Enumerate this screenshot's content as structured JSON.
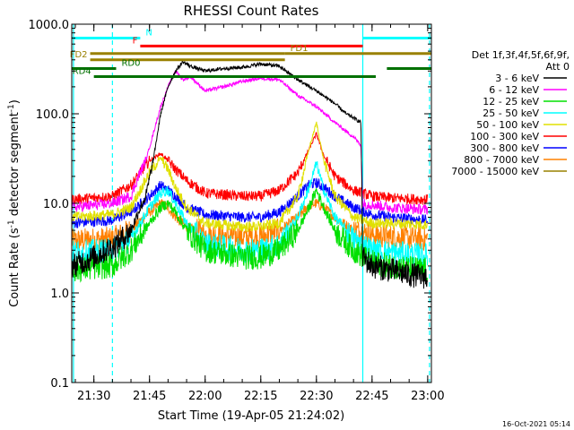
{
  "chart_data": {
    "type": "line",
    "title": "RHESSI Count Rates",
    "xlabel": "Start Time (19-Apr-05 21:24:02)",
    "ylabel_parts": [
      "Count Rate (s",
      "-1",
      " detector segment",
      "-1",
      ")"
    ],
    "y_scale": "log",
    "ylim": [
      0.1,
      1000
    ],
    "xlim": [
      "21:24:02",
      "23:01:00"
    ],
    "x_ticks": [
      "21:30",
      "21:45",
      "22:00",
      "22:15",
      "22:30",
      "22:45",
      "23:00"
    ],
    "y_ticks": [
      {
        "value": 0.1,
        "label": "0.1"
      },
      {
        "value": 1,
        "label": "1.0"
      },
      {
        "value": 10,
        "label": "10.0"
      },
      {
        "value": 100,
        "label": "100.0"
      },
      {
        "value": 1000,
        "label": "1000.0"
      }
    ],
    "legend_header": [
      "Det 1f,3f,4f,5f,6f,9f,",
      "Att 0"
    ],
    "legend_placement": "right",
    "timestamp": "16-Oct-2021 05:14",
    "series": [
      {
        "name": "3 - 6 keV",
        "color": "#000000",
        "x": [
          "21:24:02",
          "21:30",
          "21:36",
          "21:40",
          "21:42",
          "21:44",
          "21:46",
          "21:48",
          "21:50",
          "21:52",
          "21:54",
          "21:56",
          "22:00",
          "22:05",
          "22:10",
          "22:15",
          "22:20",
          "22:25",
          "22:30",
          "22:35",
          "22:38",
          "22:40",
          "22:42",
          "22:42:30",
          "22:45",
          "22:50",
          "22:55",
          "23:00"
        ],
        "y": [
          2.0,
          2.5,
          3.5,
          5,
          8,
          12,
          30,
          100,
          200,
          300,
          380,
          340,
          300,
          320,
          330,
          360,
          340,
          240,
          180,
          130,
          100,
          90,
          80,
          2.5,
          2.0,
          1.8,
          1.6,
          1.5
        ]
      },
      {
        "name": "6 - 12 keV",
        "color": "#ff00ff",
        "x": [
          "21:24:02",
          "21:35",
          "21:40",
          "21:42",
          "21:44",
          "21:46",
          "21:48",
          "21:50",
          "21:52",
          "21:54",
          "21:56",
          "22:00",
          "22:05",
          "22:10",
          "22:15",
          "22:20",
          "22:25",
          "22:30",
          "22:35",
          "22:40",
          "22:42",
          "22:42:30",
          "22:50",
          "23:00"
        ],
        "y": [
          9,
          10,
          12,
          20,
          30,
          60,
          120,
          200,
          300,
          240,
          260,
          180,
          200,
          230,
          250,
          240,
          160,
          120,
          80,
          55,
          45,
          10,
          9,
          8.5
        ]
      },
      {
        "name": "12 - 25 keV",
        "color": "#00e000",
        "x": [
          "21:24:02",
          "21:35",
          "21:40",
          "21:45",
          "21:48",
          "21:50",
          "21:52",
          "21:55",
          "22:00",
          "22:10",
          "22:15",
          "22:20",
          "22:25",
          "22:28",
          "22:30",
          "22:32",
          "22:35",
          "22:40",
          "22:45",
          "22:50",
          "23:00"
        ],
        "y": [
          1.8,
          2.0,
          3.0,
          6,
          9,
          10,
          8,
          5,
          3.0,
          2.5,
          2.5,
          3.0,
          5,
          9,
          14,
          9,
          5,
          3,
          2.2,
          2.0,
          1.8
        ]
      },
      {
        "name": "25 - 50 keV",
        "color": "#00ffff",
        "x": [
          "21:24:02",
          "21:35",
          "21:40",
          "21:45",
          "21:48",
          "21:50",
          "21:52",
          "21:55",
          "22:00",
          "22:10",
          "22:15",
          "22:20",
          "22:25",
          "22:28",
          "22:30",
          "22:32",
          "22:35",
          "22:40",
          "22:45",
          "22:50",
          "23:00"
        ],
        "y": [
          2.8,
          3.0,
          4,
          9,
          13,
          14,
          10,
          6,
          3.5,
          3.0,
          3.0,
          3.5,
          7,
          15,
          28,
          14,
          7,
          4,
          3,
          2.8,
          2.6
        ]
      },
      {
        "name": "50 - 100 keV",
        "color": "#e0e000",
        "x": [
          "21:24:02",
          "21:35",
          "21:40",
          "21:45",
          "21:48",
          "21:50",
          "21:52",
          "21:55",
          "22:00",
          "22:10",
          "22:15",
          "22:20",
          "22:25",
          "22:28",
          "22:30",
          "22:32",
          "22:35",
          "22:40",
          "22:45",
          "22:50",
          "23:00"
        ],
        "y": [
          7,
          7.5,
          9,
          22,
          32,
          24,
          15,
          9,
          6,
          5.5,
          5.5,
          6,
          12,
          40,
          80,
          30,
          12,
          7,
          6,
          6,
          5.8
        ]
      },
      {
        "name": "100 - 300 keV",
        "color": "#ff0000",
        "x": [
          "21:24:02",
          "21:35",
          "21:40",
          "21:45",
          "21:48",
          "21:50",
          "21:52",
          "21:55",
          "22:00",
          "22:10",
          "22:15",
          "22:20",
          "22:25",
          "22:28",
          "22:30",
          "22:32",
          "22:35",
          "22:40",
          "22:45",
          "22:50",
          "23:00"
        ],
        "y": [
          11,
          12,
          16,
          30,
          36,
          30,
          24,
          18,
          13,
          12,
          12,
          14,
          22,
          40,
          60,
          34,
          20,
          14,
          12,
          11.5,
          11
        ]
      },
      {
        "name": "300 - 800 keV",
        "color": "#0000ff",
        "x": [
          "21:24:02",
          "21:35",
          "21:40",
          "21:45",
          "21:48",
          "21:50",
          "21:52",
          "21:55",
          "22:00",
          "22:10",
          "22:15",
          "22:20",
          "22:25",
          "22:28",
          "22:30",
          "22:32",
          "22:35",
          "22:40",
          "22:45",
          "22:50",
          "23:00"
        ],
        "y": [
          6,
          6.5,
          8,
          12,
          16,
          14,
          12,
          9,
          7.5,
          7,
          7,
          8,
          12,
          16,
          17,
          15,
          12,
          9,
          7.5,
          7,
          6.5
        ]
      },
      {
        "name": "800 - 7000 keV",
        "color": "#ff8000",
        "x": [
          "21:24:02",
          "21:35",
          "21:40",
          "21:45",
          "21:48",
          "21:50",
          "21:52",
          "21:55",
          "22:00",
          "22:10",
          "22:15",
          "22:20",
          "22:25",
          "22:28",
          "22:30",
          "22:32",
          "22:35",
          "22:40",
          "22:45",
          "22:50",
          "23:00"
        ],
        "y": [
          3.8,
          4,
          5,
          8,
          10,
          9,
          7,
          5.5,
          4.5,
          4.2,
          4.2,
          5,
          7,
          9.5,
          10,
          9,
          7,
          5,
          4.5,
          4.2,
          4
        ]
      },
      {
        "name": "7000 - 15000 keV",
        "color": "#998000",
        "x": [],
        "y": []
      }
    ],
    "annotations": [
      {
        "label": "N",
        "color": "#00ffff",
        "label_pos": "right",
        "segments": [
          [
            "21:24:02",
            "21:42:30"
          ],
          [
            "22:42:30",
            "23:01:00"
          ]
        ],
        "y_value": 700
      },
      {
        "label": "F",
        "color": "#ff0000",
        "label_pos": "left",
        "segments": [
          [
            "21:42:30",
            "22:42:30"
          ]
        ],
        "y_value": 570
      },
      {
        "label": "FD1",
        "color": "#998000",
        "label_pos": "right",
        "segments": [
          [
            "21:29",
            "22:21:30"
          ],
          [
            "22:21:30",
            "23:01:00"
          ]
        ],
        "y_value": 470
      },
      {
        "label": "FD2",
        "color": "#998000",
        "label_pos": "left",
        "segments": [
          [
            "21:29",
            "22:21:30"
          ]
        ],
        "y_value": 400
      },
      {
        "label": "RD0",
        "color": "#007000",
        "label_pos": "right",
        "segments": [
          [
            "21:24:02",
            "21:36"
          ],
          [
            "22:49",
            "23:01:00"
          ]
        ],
        "y_value": 320
      },
      {
        "label": "RD4",
        "color": "#007000",
        "label_pos": "left",
        "segments": [
          [
            "21:30",
            "22:46"
          ]
        ],
        "y_value": 260
      }
    ],
    "vertical_markers": [
      {
        "time": "21:24:30",
        "color": "#00ffff",
        "style": "solid"
      },
      {
        "time": "21:35:00",
        "color": "#00ffff",
        "style": "dashed"
      },
      {
        "time": "22:42:30",
        "color": "#00ffff",
        "style": "solid"
      },
      {
        "time": "23:00:30",
        "color": "#00ffff",
        "style": "dashed"
      }
    ]
  }
}
